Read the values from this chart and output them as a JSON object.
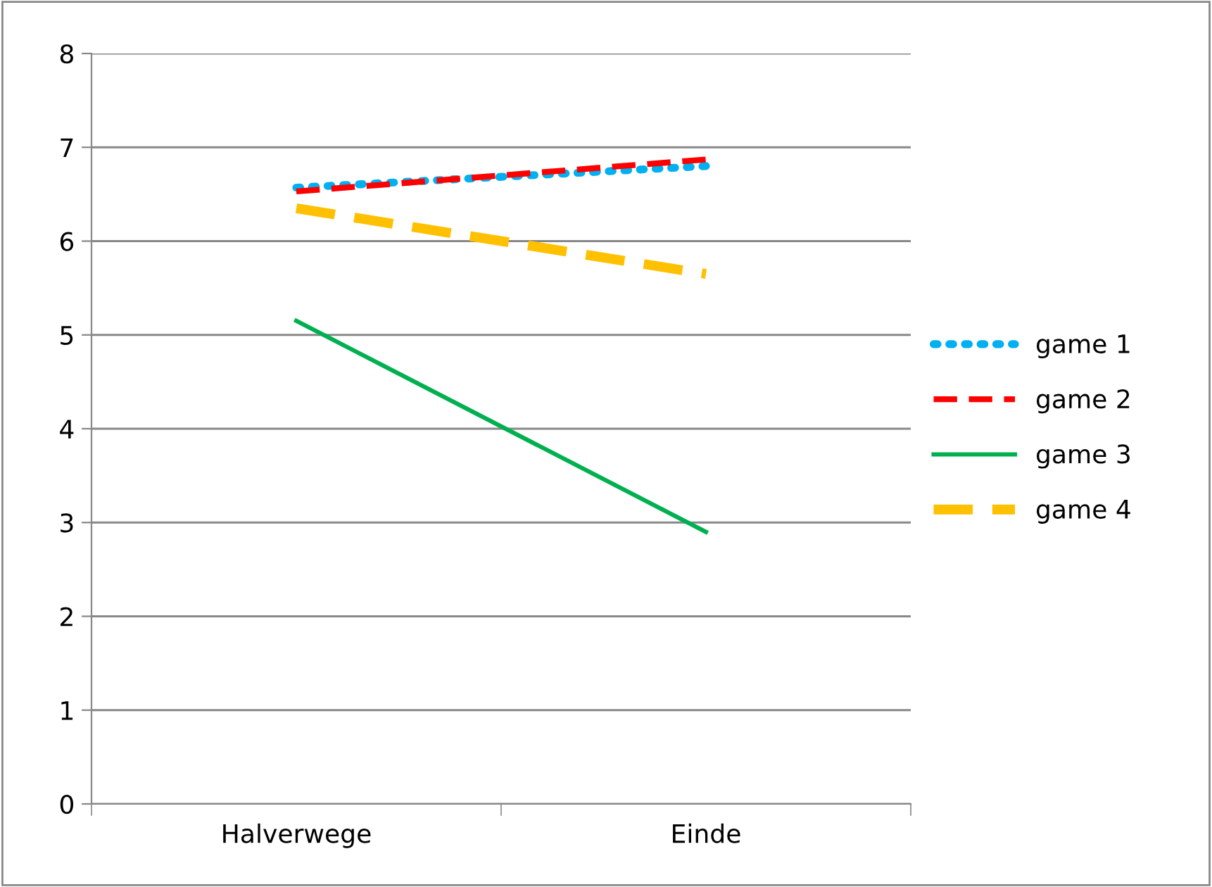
{
  "chart_data": {
    "type": "line",
    "categories": [
      "Halverwege",
      "Einde"
    ],
    "series": [
      {
        "name": "game 1",
        "color": "#00b0f0",
        "line_style": "dotted",
        "values": [
          6.57,
          6.8
        ]
      },
      {
        "name": "game 2",
        "color": "#ff0000",
        "line_style": "dashed",
        "values": [
          6.53,
          6.87
        ]
      },
      {
        "name": "game 3",
        "color": "#00b050",
        "line_style": "solid",
        "values": [
          5.15,
          2.9
        ]
      },
      {
        "name": "game 4",
        "color": "#ffc000",
        "line_style": "dashed",
        "values": [
          6.35,
          5.65
        ]
      }
    ],
    "ylim": [
      0,
      8
    ],
    "yticks": [
      0,
      1,
      2,
      3,
      4,
      5,
      6,
      7,
      8
    ],
    "grid": "y",
    "legend": "right",
    "marker": "none"
  }
}
